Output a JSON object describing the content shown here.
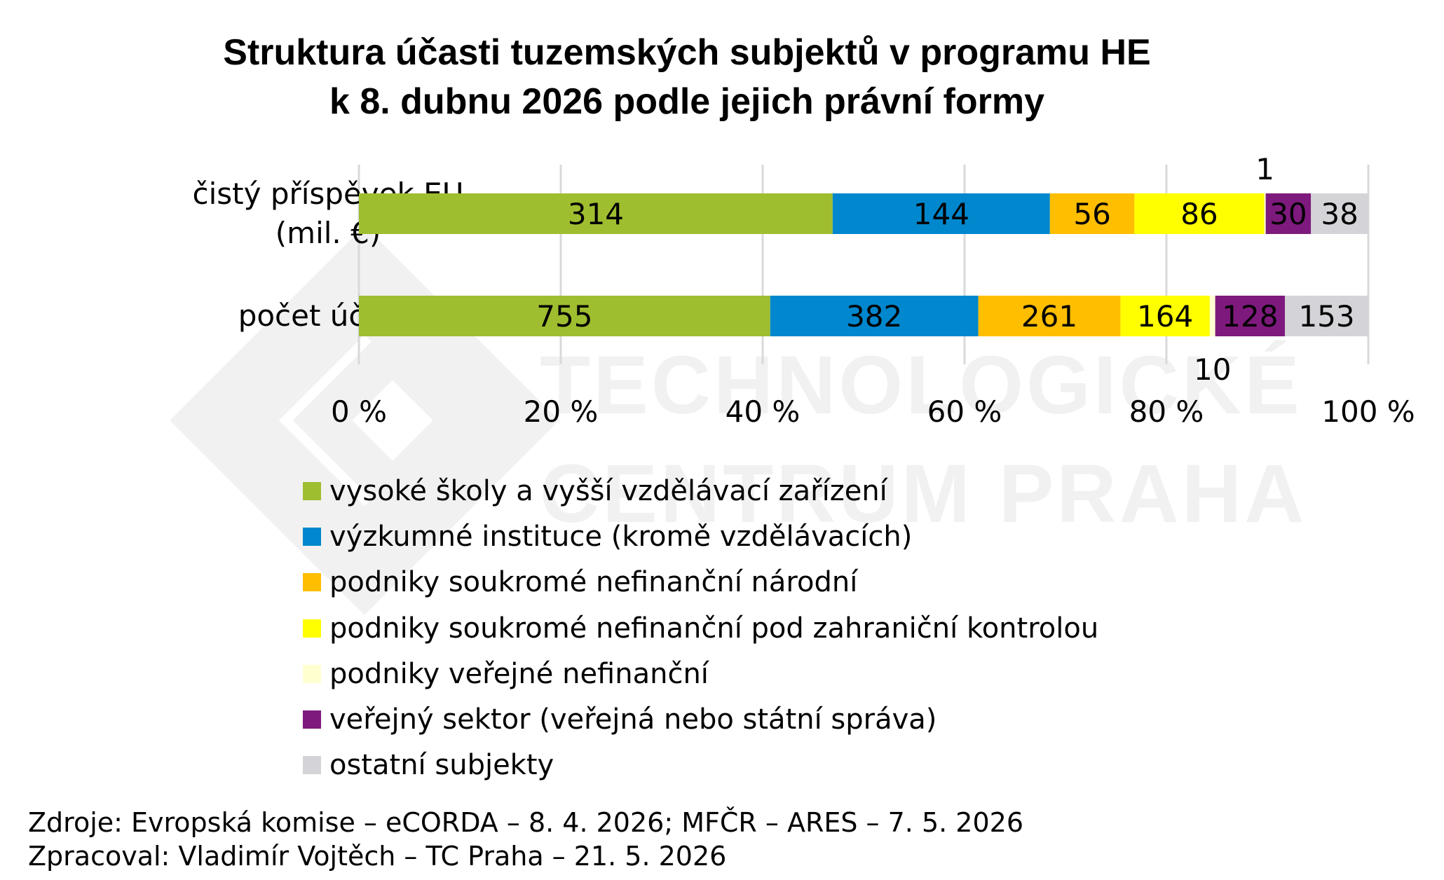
{
  "title_line1": "Struktura účasti tuzemských subjektů v programu HE",
  "title_line2": "k 8. dubnu 2026 podle jejich právní formy",
  "watermark": {
    "line1": "TECHNOLOGICKÉ",
    "line2": "CENTRUM PRAHA"
  },
  "chart_data": {
    "type": "bar",
    "orientation": "horizontal",
    "stacking": "percent",
    "categories": [
      "čistý příspěvek EU (mil. €)",
      "počet účastí"
    ],
    "category_lines": [
      [
        "čistý příspěvek EU",
        "(mil. €)"
      ],
      [
        "počet účastí"
      ]
    ],
    "series": [
      {
        "name": "vysoké školy a vyšší vzdělávací zařízení",
        "color": "#9fbe2f",
        "values": [
          314,
          755
        ],
        "labels": [
          "314",
          "755"
        ]
      },
      {
        "name": "výzkumné instituce (kromě vzdělávacích)",
        "color": "#0087cd",
        "values": [
          144,
          382
        ],
        "labels": [
          "144",
          "382"
        ]
      },
      {
        "name": "podniky soukromé nefinanční národní",
        "color": "#ffbe00",
        "values": [
          56,
          261
        ],
        "labels": [
          "56",
          "261"
        ]
      },
      {
        "name": "podniky soukromé nefinanční pod zahraniční kontrolou",
        "color": "#ffff00",
        "values": [
          86,
          164
        ],
        "labels": [
          "86",
          "164"
        ]
      },
      {
        "name": "podniky veřejné nefinanční",
        "color": "#ffffd0",
        "values": [
          1,
          10
        ],
        "labels": [
          "1",
          "10"
        ]
      },
      {
        "name": "veřejný sektor (veřejná nebo státní správa)",
        "color": "#7e1a7d",
        "values": [
          30,
          128
        ],
        "labels": [
          "30",
          "128"
        ]
      },
      {
        "name": "ostatní subjekty",
        "color": "#d4d4d8",
        "values": [
          38,
          153
        ],
        "labels": [
          "38",
          "153"
        ]
      }
    ],
    "x_ticks": [
      "0 %",
      "20 %",
      "40 %",
      "60 %",
      "80 %",
      "100 %"
    ],
    "xlim": [
      0,
      100
    ],
    "grid": true,
    "legend_placement": "bottom"
  },
  "footer": {
    "sources": "Zdroje: Evropská komise – eCORDA – 8. 4. 2026; MFČR – ARES – 7. 5. 2026",
    "author": "Zpracoval: Vladimír Vojtěch – TC Praha – 21. 5. 2026"
  }
}
